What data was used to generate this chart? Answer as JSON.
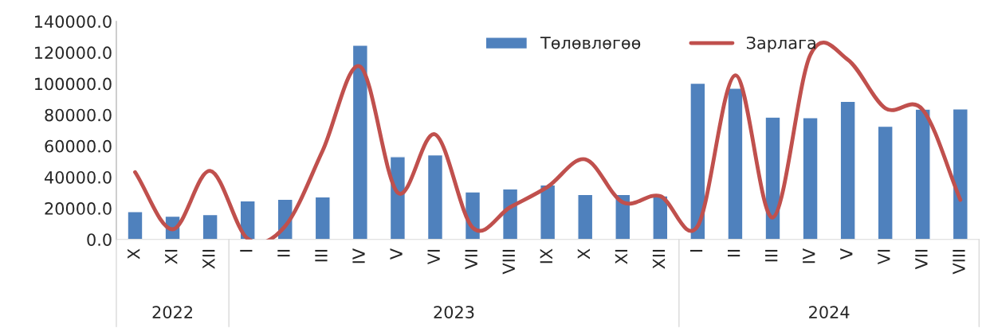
{
  "chart_data": {
    "type": "bar",
    "categories": [
      "X",
      "XI",
      "XII",
      "I",
      "II",
      "III",
      "IV",
      "V",
      "VI",
      "VII",
      "VIII",
      "IX",
      "X",
      "XI",
      "XII",
      "I",
      "II",
      "III",
      "IV",
      "V",
      "VI",
      "VII",
      "VIII"
    ],
    "series": [
      {
        "name": "Төлөвлөгөө",
        "color": "#4f81bd",
        "values": [
          17800,
          14900,
          16000,
          24800,
          25800,
          27300,
          124700,
          53100,
          54300,
          30500,
          32400,
          35000,
          28800,
          28800,
          28000,
          100300,
          97100,
          78500,
          78100,
          88600,
          72700,
          83600,
          83800
        ]
      },
      {
        "name": "Зарлага",
        "type": "line",
        "color": "#c0504d",
        "values": [
          43200,
          6500,
          44000,
          500,
          8500,
          57000,
          111000,
          30000,
          67400,
          7500,
          20700,
          33800,
          51400,
          23800,
          27800,
          8700,
          105300,
          14100,
          118400,
          115400,
          84200,
          83200,
          25400
        ]
      }
    ],
    "ylim": [
      0,
      140000
    ],
    "yticks": [
      {
        "value": 0,
        "label": "0.0"
      },
      {
        "value": 20000,
        "label": "20000.0"
      },
      {
        "value": 40000,
        "label": "40000.0"
      },
      {
        "value": 60000,
        "label": "60000.0"
      },
      {
        "value": 80000,
        "label": "80000.0"
      },
      {
        "value": 100000,
        "label": "100000.0"
      },
      {
        "value": 120000,
        "label": "120000.0"
      },
      {
        "value": 140000,
        "label": "140000.0"
      }
    ],
    "annotations": [
      "2022",
      "2023",
      "2024"
    ],
    "grid": false,
    "legend": "top",
    "marker": "none"
  }
}
